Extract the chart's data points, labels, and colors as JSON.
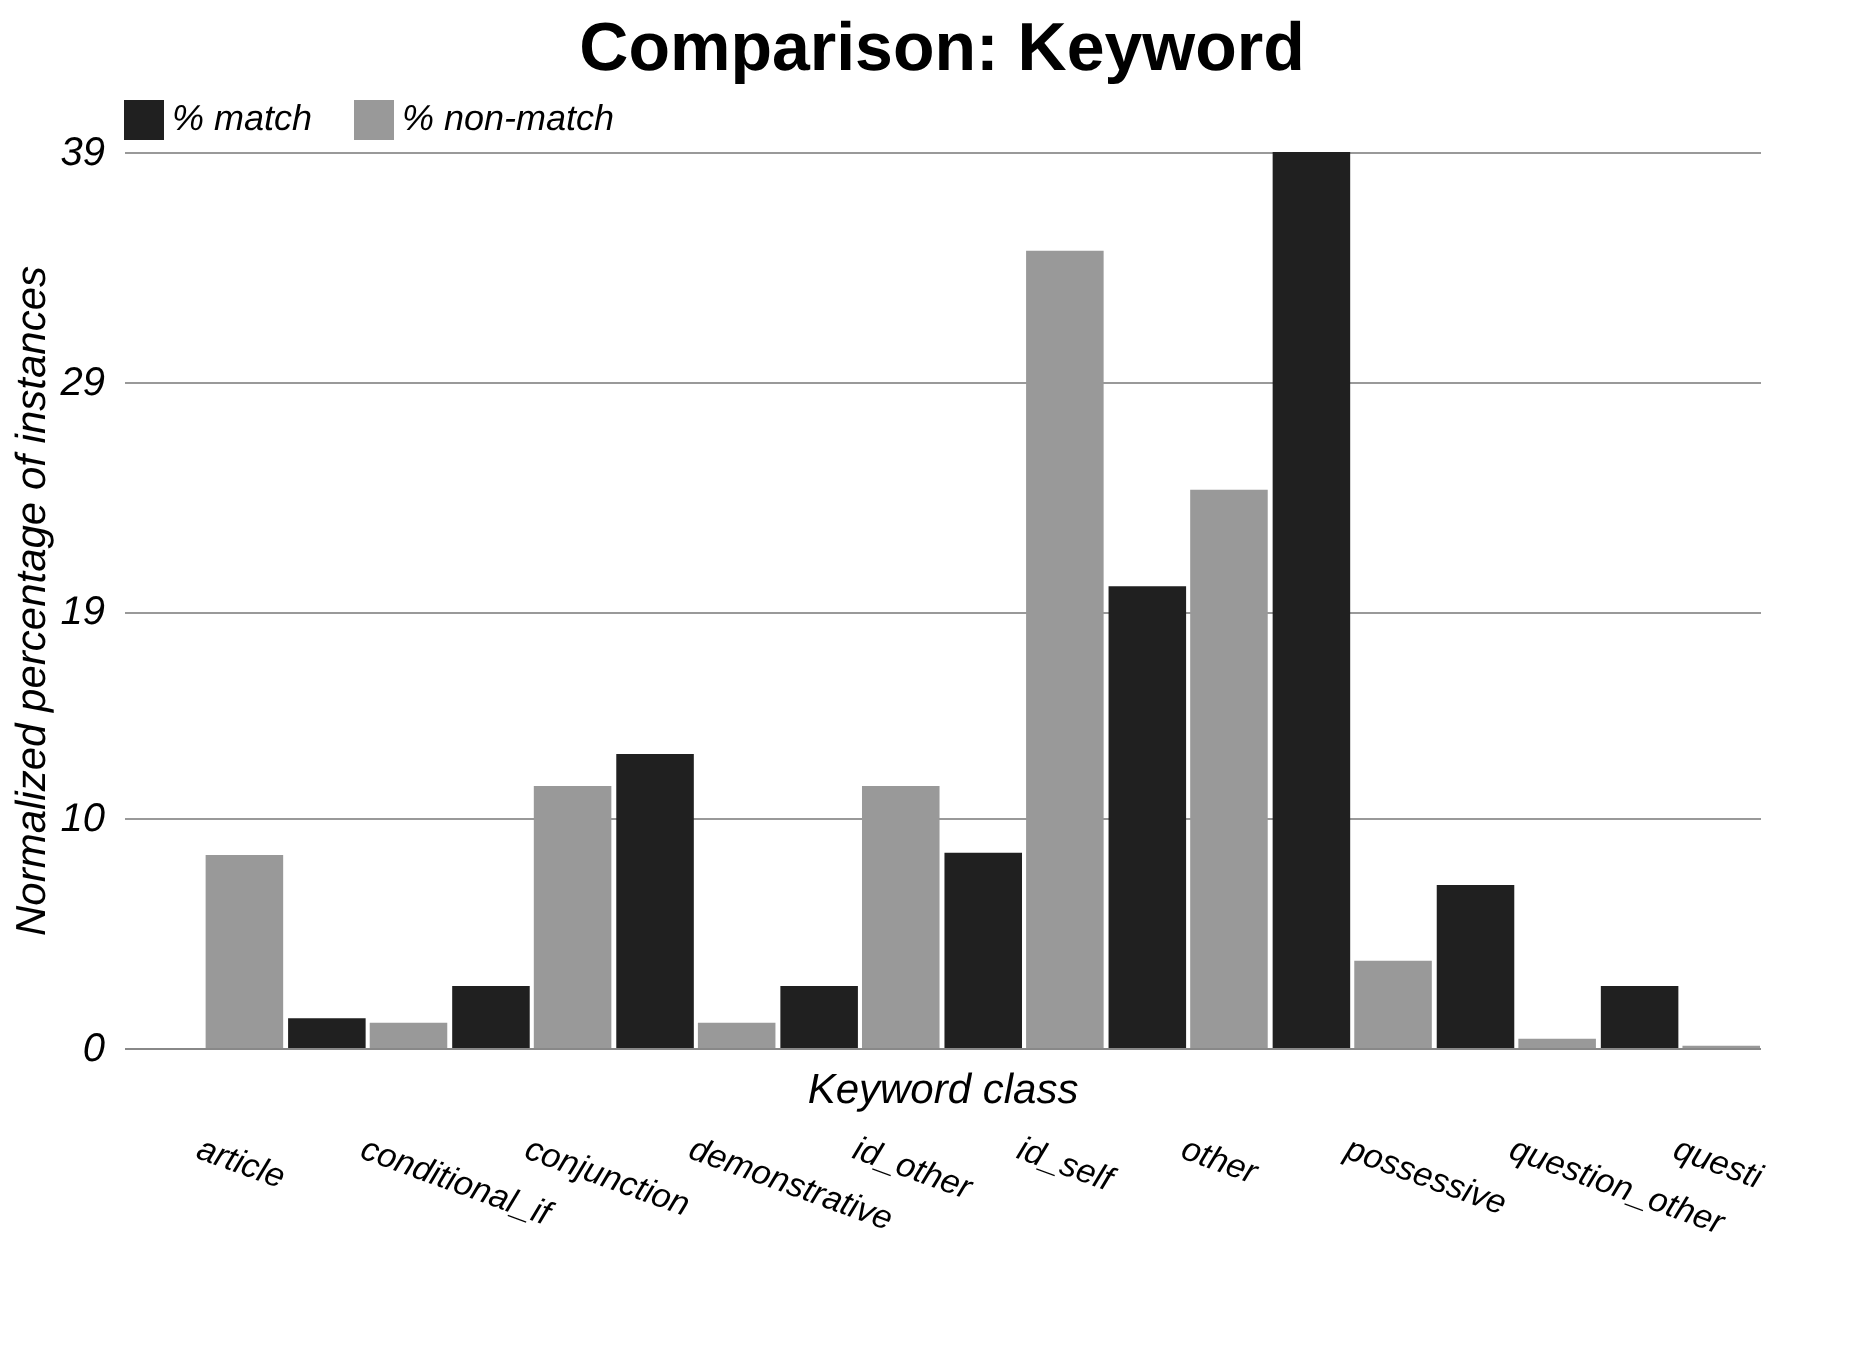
{
  "chart_data": {
    "type": "bar",
    "title": "Comparison: Keyword",
    "xlabel": "Keyword class",
    "ylabel": "Normalized percentage of instances",
    "categories": [
      "article",
      "conditional_if",
      "conjunction",
      "demonstrative",
      "id_other",
      "id_self",
      "other",
      "possessive",
      "question_other",
      "questi"
    ],
    "series": [
      {
        "name": "% match",
        "color": "#202020",
        "values": [
          null,
          1.3,
          2.7,
          12.8,
          2.7,
          8.5,
          20.1,
          39,
          7.1,
          2.7
        ]
      },
      {
        "name": "% non-match",
        "color": "#999999",
        "values": [
          8.4,
          1.1,
          11.4,
          1.1,
          11.4,
          34.7,
          24.3,
          3.8,
          0.4,
          0.1
        ]
      }
    ],
    "ylim": [
      0,
      39
    ],
    "yticks": [
      0,
      10,
      19,
      29,
      39
    ],
    "grid": "y",
    "legend": "top"
  }
}
